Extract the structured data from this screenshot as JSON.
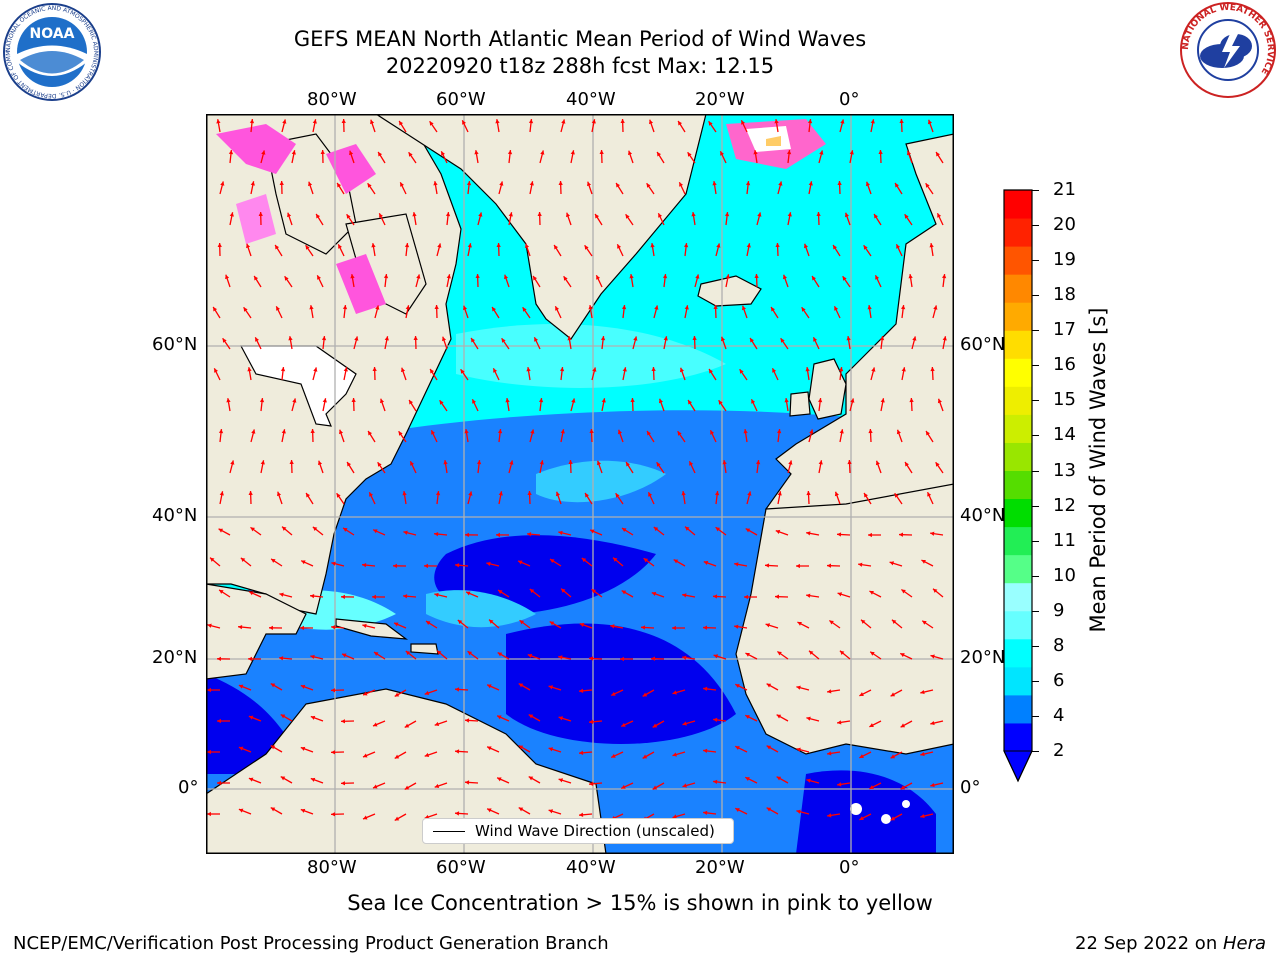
{
  "title": "GEFS MEAN North Atlantic Mean Period of Wind Waves",
  "subtitle": "20220920 t18z 288h fcst   Max: 12.15",
  "map": {
    "lon_ticks": [
      "80°W",
      "60°W",
      "40°W",
      "20°W",
      "0°"
    ],
    "lat_ticks": [
      "60°N",
      "40°N",
      "20°N",
      "0°"
    ],
    "legend_label": "Wind Wave Direction (unscaled)"
  },
  "colorbar": {
    "label": "Mean Period of Wind Waves [s]",
    "ticks": [
      "21",
      "20",
      "19",
      "18",
      "17",
      "16",
      "15",
      "14",
      "13",
      "12",
      "11",
      "10",
      "9",
      "8",
      "6",
      "4",
      "2"
    ],
    "colors": [
      "#0000ff",
      "#0080ff",
      "#00e5ff",
      "#00ffff",
      "#66ffff",
      "#99ffff",
      "#55ff88",
      "#22ee55",
      "#00dd00",
      "#55dd00",
      "#99e600",
      "#ccee00",
      "#eeee00",
      "#ffff00",
      "#ffdd00",
      "#ffaa00",
      "#ff8800",
      "#ff5500",
      "#ff2200",
      "#ff0000"
    ]
  },
  "note": "Sea Ice Concentration > 15% is shown in pink to yellow",
  "footer": {
    "left": "NCEP/EMC/Verification Post Processing Product Generation Branch",
    "right_prefix": "22 Sep 2022 on ",
    "right_machine": "Hera"
  },
  "logos": {
    "noaa_text": "NOAA",
    "noaa_ring": "NATIONAL OCEANIC AND ATMOSPHERIC ADMINISTRATION · U.S. DEPARTMENT OF COMMERCE",
    "nws_ring": "NATIONAL WEATHER SERVICE"
  },
  "accent_colors": {
    "land": "#efecdc",
    "ocean": "#00ffff",
    "arrow": "#ff0000",
    "grid": "#b0b0b0"
  }
}
